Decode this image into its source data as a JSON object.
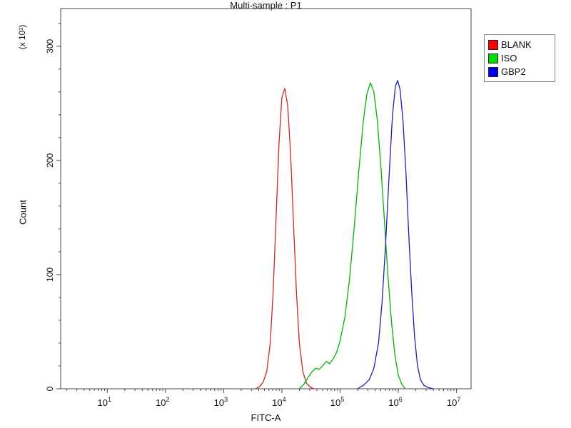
{
  "title": "Multi-sample : P1",
  "legend": {
    "items": [
      {
        "label": "BLANK",
        "color": "#ff0000"
      },
      {
        "label": "ISO",
        "color": "#00dd00"
      },
      {
        "label": "GBP2",
        "color": "#0000ee"
      }
    ]
  },
  "chart_data": {
    "type": "line",
    "title": "Multi-sample : P1",
    "xlabel": "FITC-A",
    "ylabel": "Count",
    "y_multiplier": "(x 10¹)",
    "x_scale": "log",
    "x_log_min": 0.2,
    "x_log_max": 7.25,
    "ylim": [
      0,
      333
    ],
    "x_tick_base": "10",
    "x_ticks": [
      1,
      2,
      3,
      4,
      5,
      6,
      7
    ],
    "y_ticks": [
      0,
      100,
      200,
      300
    ],
    "y_minor_step": 20,
    "grid": false,
    "legend_position": "right-outside",
    "axis_color": "#444444",
    "series": [
      {
        "name": "BLANK",
        "color": "#c82828",
        "points": [
          [
            3.55,
            0
          ],
          [
            3.62,
            2
          ],
          [
            3.68,
            6
          ],
          [
            3.74,
            15
          ],
          [
            3.8,
            40
          ],
          [
            3.85,
            85
          ],
          [
            3.9,
            150
          ],
          [
            3.95,
            215
          ],
          [
            4.0,
            255
          ],
          [
            4.05,
            263
          ],
          [
            4.1,
            248
          ],
          [
            4.15,
            205
          ],
          [
            4.2,
            145
          ],
          [
            4.25,
            85
          ],
          [
            4.3,
            40
          ],
          [
            4.36,
            15
          ],
          [
            4.42,
            5
          ],
          [
            4.5,
            1
          ],
          [
            4.56,
            0
          ]
        ]
      },
      {
        "name": "ISO",
        "color": "#00b400",
        "points": [
          [
            4.3,
            0
          ],
          [
            4.38,
            4
          ],
          [
            4.45,
            10
          ],
          [
            4.52,
            15
          ],
          [
            4.58,
            18
          ],
          [
            4.64,
            17
          ],
          [
            4.7,
            20
          ],
          [
            4.76,
            24
          ],
          [
            4.82,
            22
          ],
          [
            4.88,
            26
          ],
          [
            4.94,
            32
          ],
          [
            5.0,
            42
          ],
          [
            5.08,
            62
          ],
          [
            5.16,
            95
          ],
          [
            5.24,
            140
          ],
          [
            5.32,
            190
          ],
          [
            5.4,
            235
          ],
          [
            5.46,
            258
          ],
          [
            5.52,
            268
          ],
          [
            5.58,
            260
          ],
          [
            5.64,
            235
          ],
          [
            5.7,
            195
          ],
          [
            5.76,
            148
          ],
          [
            5.82,
            100
          ],
          [
            5.88,
            60
          ],
          [
            5.94,
            30
          ],
          [
            6.0,
            12
          ],
          [
            6.06,
            4
          ],
          [
            6.12,
            0
          ]
        ]
      },
      {
        "name": "GBP2",
        "color": "#1e1eb4",
        "points": [
          [
            5.3,
            0
          ],
          [
            5.4,
            3
          ],
          [
            5.5,
            8
          ],
          [
            5.58,
            18
          ],
          [
            5.66,
            40
          ],
          [
            5.72,
            75
          ],
          [
            5.78,
            125
          ],
          [
            5.84,
            185
          ],
          [
            5.9,
            240
          ],
          [
            5.95,
            265
          ],
          [
            5.99,
            270
          ],
          [
            6.03,
            262
          ],
          [
            6.08,
            235
          ],
          [
            6.13,
            190
          ],
          [
            6.18,
            135
          ],
          [
            6.23,
            85
          ],
          [
            6.28,
            45
          ],
          [
            6.33,
            20
          ],
          [
            6.38,
            8
          ],
          [
            6.44,
            3
          ],
          [
            6.52,
            1
          ],
          [
            6.6,
            0
          ]
        ]
      }
    ]
  }
}
